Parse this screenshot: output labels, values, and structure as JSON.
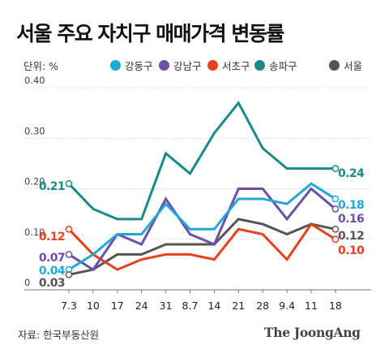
{
  "header": {
    "title": "서울 주요 자치구 매매가격 변동률",
    "unit": "단위: %"
  },
  "footer": {
    "source": "자료: 한국부동산원",
    "logo": "The JoongAng"
  },
  "chart_data": {
    "type": "line",
    "title": "서울 주요 자치구 매매가격 변동률",
    "ylabel": "",
    "xlabel": "",
    "categories": [
      "7.3",
      "10",
      "17",
      "24",
      "31",
      "8.7",
      "14",
      "21",
      "28",
      "9.4",
      "11",
      "18"
    ],
    "ylim": [
      0,
      0.4
    ],
    "yticks": [
      0,
      0.1,
      0.2,
      0.3,
      0.4
    ],
    "ytick_labels": [
      "0",
      "0.10",
      "0.20",
      "0.30",
      "0.40"
    ],
    "grid": true,
    "legend_position": "top",
    "series": [
      {
        "name": "강동구",
        "color": "#1ea9d6",
        "values": [
          0.04,
          0.07,
          0.11,
          0.11,
          0.17,
          0.12,
          0.12,
          0.18,
          0.18,
          0.17,
          0.21,
          0.18
        ],
        "start_label": "0.04",
        "end_label": "0.18"
      },
      {
        "name": "강남구",
        "color": "#6b4fa8",
        "values": [
          0.07,
          0.04,
          0.11,
          0.09,
          0.18,
          0.11,
          0.09,
          0.2,
          0.2,
          0.14,
          0.2,
          0.16
        ],
        "start_label": "0.07",
        "end_label": "0.16"
      },
      {
        "name": "서초구",
        "color": "#e8401c",
        "values": [
          0.12,
          0.07,
          0.04,
          0.06,
          0.07,
          0.07,
          0.06,
          0.12,
          0.11,
          0.06,
          0.13,
          0.1
        ],
        "start_label": "0.12",
        "end_label": "0.10"
      },
      {
        "name": "송파구",
        "color": "#1b8a8a",
        "values": [
          0.21,
          0.16,
          0.14,
          0.14,
          0.27,
          0.23,
          0.31,
          0.37,
          0.28,
          0.24,
          0.24,
          0.24
        ],
        "start_label": "0.21",
        "end_label": "0.24"
      },
      {
        "name": "서울",
        "color": "#555555",
        "values": [
          0.03,
          0.04,
          0.07,
          0.07,
          0.09,
          0.09,
          0.09,
          0.14,
          0.13,
          0.11,
          0.13,
          0.12
        ],
        "start_label": "0.03",
        "end_label": "0.12"
      }
    ]
  }
}
